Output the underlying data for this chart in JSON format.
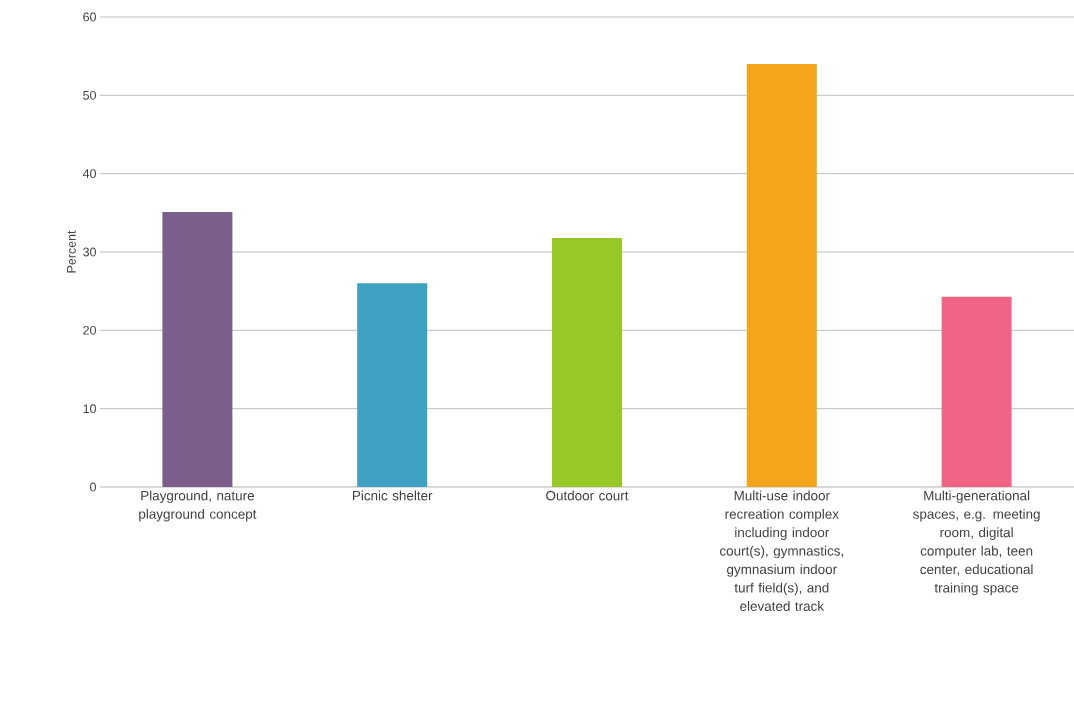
{
  "chart_data": {
    "type": "bar",
    "ylabel": "Percent",
    "categories": [
      "Playground, nature playground concept",
      "Picnic shelter",
      "Outdoor court",
      "Multi-use indoor recreation complex including indoor court(s), gymnastics, gymnasium indoor turf field(s), and elevated track",
      "Multi-generational spaces, e.g. meeting room, digital computer lab, teen center, educational training space"
    ],
    "values": [
      35.1,
      26.0,
      31.8,
      54.0,
      24.3
    ],
    "colors": [
      "#7b5e8c",
      "#3ea1c2",
      "#97c827",
      "#f4a51a",
      "#f06585"
    ],
    "ylim": [
      0,
      60
    ],
    "yticks": [
      0,
      10,
      20,
      30,
      40,
      50,
      60
    ],
    "grid": "y"
  }
}
